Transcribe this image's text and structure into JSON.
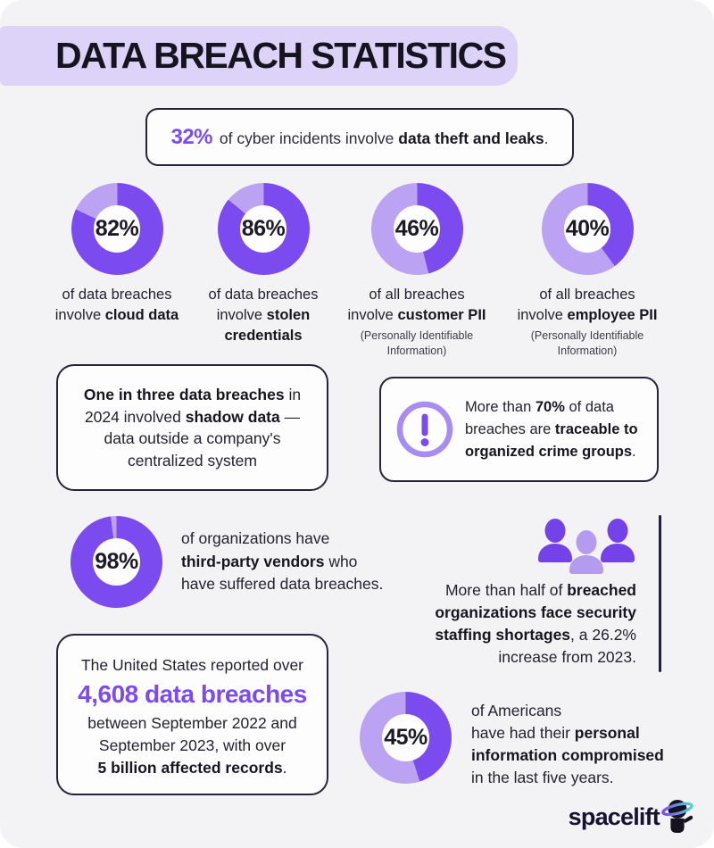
{
  "theme": {
    "accent": "#7c4bf0",
    "accent_light": "#bca2f2",
    "band": "#ddd2f8",
    "dark": "#16141f",
    "icon_ring": "#a78df1",
    "people_dark": "#7343e9",
    "people_light": "#b59bf0"
  },
  "header": {
    "title": "DATA BREACH STATISTICS"
  },
  "callout": {
    "segments": [
      {
        "t": "32%",
        "s": "accent-big"
      },
      {
        "t": " of cyber incidents involve "
      },
      {
        "t": "data theft and leaks",
        "b": true
      },
      {
        "t": "."
      }
    ]
  },
  "donuts": [
    {
      "value": 82,
      "label": "82%",
      "caption": [
        {
          "t": "of data breaches"
        },
        {
          "br": true
        },
        {
          "t": "involve "
        },
        {
          "t": "cloud data",
          "b": true
        }
      ]
    },
    {
      "value": 86,
      "label": "86%",
      "caption": [
        {
          "t": "of data breaches"
        },
        {
          "br": true
        },
        {
          "t": "involve "
        },
        {
          "t": "stolen",
          "b": true
        },
        {
          "br": true
        },
        {
          "t": "credentials",
          "b": true
        }
      ]
    },
    {
      "value": 46,
      "label": "46%",
      "caption": [
        {
          "t": "of all breaches"
        },
        {
          "br": true
        },
        {
          "t": "involve "
        },
        {
          "t": "customer PII",
          "b": true
        }
      ],
      "note": [
        {
          "t": "(Personally Identifiable"
        },
        {
          "br": true
        },
        {
          "t": "Information)"
        }
      ]
    },
    {
      "value": 40,
      "label": "40%",
      "caption": [
        {
          "t": "of all breaches"
        },
        {
          "br": true
        },
        {
          "t": "involve "
        },
        {
          "t": "employee PII",
          "b": true
        }
      ],
      "note": [
        {
          "t": "(Personally Identifiable"
        },
        {
          "br": true
        },
        {
          "t": "Information)"
        }
      ]
    },
    {
      "value": 98,
      "label": "98%"
    },
    {
      "value": 45,
      "label": "45%"
    }
  ],
  "shadow_card": {
    "segments": [
      {
        "t": "One in three data breaches",
        "b": true
      },
      {
        "t": " in"
      },
      {
        "br": true
      },
      {
        "t": "2024 involved "
      },
      {
        "t": "shadow data",
        "b": true
      },
      {
        "t": " —"
      },
      {
        "br": true
      },
      {
        "t": "data outside a company's"
      },
      {
        "br": true
      },
      {
        "t": "centralized system"
      }
    ]
  },
  "crime_card": {
    "segments": [
      {
        "t": "More than "
      },
      {
        "t": "70%",
        "b": true
      },
      {
        "t": " of data"
      },
      {
        "br": true
      },
      {
        "t": "breaches are "
      },
      {
        "t": "traceable to",
        "b": true
      },
      {
        "br": true
      },
      {
        "t": "organized crime groups",
        "b": true
      },
      {
        "t": "."
      }
    ]
  },
  "third_party": {
    "segments": [
      {
        "t": "of organizations have"
      },
      {
        "br": true
      },
      {
        "t": "third-party vendors",
        "b": true
      },
      {
        "t": " who"
      },
      {
        "br": true
      },
      {
        "t": "have suffered data breaches."
      }
    ]
  },
  "staffing": {
    "segments": [
      {
        "t": "More than half of "
      },
      {
        "t": "breached",
        "b": true
      },
      {
        "br": true
      },
      {
        "t": "organizations face security",
        "b": true
      },
      {
        "br": true
      },
      {
        "t": "staffing shortages",
        "b": true
      },
      {
        "t": ", a 26.2%"
      },
      {
        "br": true
      },
      {
        "t": "increase from 2023."
      }
    ]
  },
  "us_card": {
    "line1": "The United States reported over",
    "stat": "4,608 data breaches",
    "segments": [
      {
        "t": "between September 2022 and"
      },
      {
        "br": true
      },
      {
        "t": "September 2023, with over"
      },
      {
        "br": true
      },
      {
        "t": "5 billion affected records",
        "b": true
      },
      {
        "t": "."
      }
    ]
  },
  "americans": {
    "segments": [
      {
        "t": "of Americans"
      },
      {
        "br": true
      },
      {
        "t": "have had their "
      },
      {
        "t": "personal",
        "b": true
      },
      {
        "br": true
      },
      {
        "t": "information compromised",
        "b": true
      },
      {
        "br": true
      },
      {
        "t": "in the last five years."
      }
    ]
  },
  "footer": {
    "brand": "spacelift"
  },
  "chart_data": {
    "type": "pie",
    "subtype": "donut-multiples",
    "units": "%",
    "title": "DATA BREACH STATISTICS",
    "items": [
      {
        "label": "data breaches involving cloud data",
        "value": 82
      },
      {
        "label": "data breaches involving stolen credentials",
        "value": 86
      },
      {
        "label": "breaches involving customer PII",
        "value": 46
      },
      {
        "label": "breaches involving employee PII",
        "value": 40
      },
      {
        "label": "organizations with third-party vendors that suffered breaches",
        "value": 98
      },
      {
        "label": "Americans with personal information compromised in last five years",
        "value": 45
      }
    ],
    "other_stats": [
      {
        "label": "cyber incidents involving data theft and leaks",
        "value": 32,
        "units": "%"
      },
      {
        "label": "data breaches traceable to organized crime groups",
        "value": 70,
        "units": "%",
        "qualifier": "more than"
      },
      {
        "label": "US data breaches Sep 2022 - Sep 2023",
        "value": 4608,
        "qualifier": "over"
      },
      {
        "label": "affected records",
        "value": "5 billion",
        "qualifier": "over"
      },
      {
        "label": "security staffing shortage increase from 2023",
        "value": 26.2,
        "units": "%"
      }
    ]
  }
}
